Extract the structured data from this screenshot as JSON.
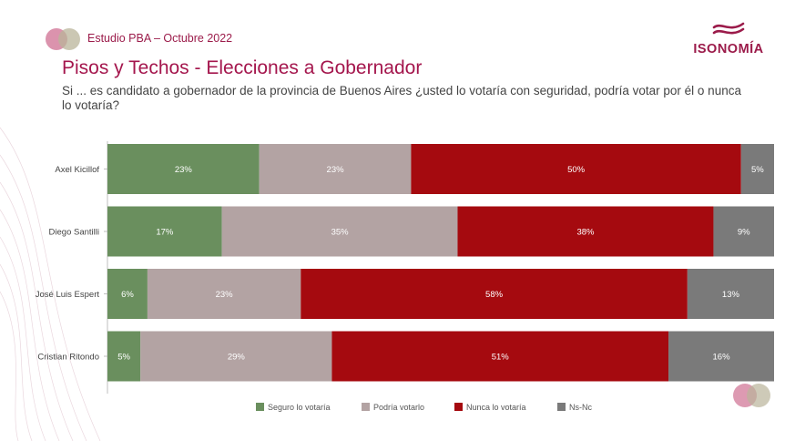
{
  "header": {
    "study_label": "Estudio PBA – Octubre 2022"
  },
  "brand": {
    "name": "ISONOMÍA",
    "logo_icon": "isonomia-wave-icon",
    "color": "#9b1b4a"
  },
  "title": "Pisos y Techos - Elecciones a Gobernador",
  "question": "Si ... es candidato a gobernador de la provincia de Buenos Aires ¿usted lo votaría con seguridad, podría votar por él o nunca lo votaría?",
  "chart_data": {
    "type": "bar",
    "orientation": "horizontal",
    "stacked": true,
    "categories": [
      "Axel Kicillof",
      "Diego Santilli",
      "José Luis Espert",
      "Cristian Ritondo"
    ],
    "series": [
      {
        "name": "Seguro lo votaría",
        "color": "#6a8f5e",
        "values": [
          23,
          17,
          6,
          5
        ],
        "labels": [
          "23%",
          "17%",
          "6%",
          "5%"
        ]
      },
      {
        "name": "Podría votarlo",
        "color": "#b3a3a3",
        "values": [
          23,
          35,
          23,
          29
        ],
        "labels": [
          "23%",
          "35%",
          "23%",
          "29%"
        ]
      },
      {
        "name": "Nunca lo votaría",
        "color": "#a50a0f",
        "values": [
          50,
          38,
          58,
          51
        ],
        "labels": [
          "50%",
          "38%",
          "58%",
          "51%"
        ]
      },
      {
        "name": "Ns-Nc",
        "color": "#7a7a7a",
        "values": [
          5,
          9,
          13,
          16
        ],
        "labels": [
          "5%",
          "9%",
          "13%",
          "16%"
        ]
      }
    ],
    "legend_position": "bottom",
    "grid": false
  }
}
